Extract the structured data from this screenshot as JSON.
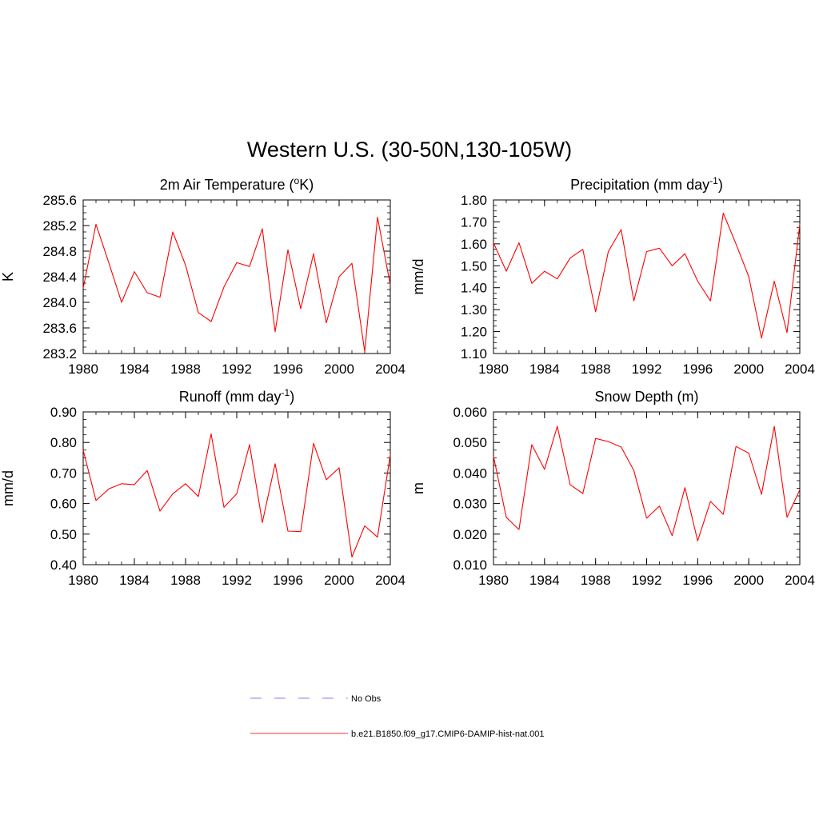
{
  "figure": {
    "title": "Western U.S. (30-50N,130-105W)"
  },
  "legend": {
    "items": [
      {
        "label": "No Obs",
        "style": "dashed",
        "color": "#9999ff"
      },
      {
        "label": "b.e21.B1850.f09_g17.CMIP6-DAMIP-hist-nat.001",
        "style": "solid",
        "color": "#ff3333"
      }
    ]
  },
  "chart_data": [
    {
      "type": "line",
      "title": "2m Air Temperature (°K)",
      "ylabel": "K",
      "xlim": [
        1980,
        2004
      ],
      "xticks": [
        "1980",
        "1984",
        "1988",
        "1992",
        "1996",
        "2000",
        "2004"
      ],
      "ylim": [
        283.2,
        285.6
      ],
      "yticks": [
        "283.2",
        "283.6",
        "284.0",
        "284.4",
        "284.8",
        "285.2",
        "285.6"
      ],
      "series": [
        {
          "color": "#ff0000",
          "x": [
            1980,
            1981,
            1982,
            1983,
            1984,
            1985,
            1986,
            1987,
            1988,
            1989,
            1990,
            1991,
            1992,
            1993,
            1994,
            1995,
            1996,
            1997,
            1998,
            1999,
            2000,
            2001,
            2002,
            2003,
            2004
          ],
          "values": [
            284.22,
            285.22,
            284.62,
            284.0,
            284.48,
            284.15,
            284.08,
            285.1,
            284.58,
            283.84,
            283.7,
            284.24,
            284.62,
            284.56,
            285.15,
            283.54,
            284.82,
            283.9,
            284.76,
            283.68,
            284.4,
            284.61,
            283.23,
            285.33,
            284.27
          ]
        }
      ]
    },
    {
      "type": "line",
      "title": "Precipitation (mm day-1)",
      "ylabel": "mm/d",
      "xlim": [
        1980,
        2004
      ],
      "xticks": [
        "1980",
        "1984",
        "1988",
        "1992",
        "1996",
        "2000",
        "2004"
      ],
      "ylim": [
        1.1,
        1.8
      ],
      "yticks": [
        "1.10",
        "1.20",
        "1.30",
        "1.40",
        "1.50",
        "1.60",
        "1.70",
        "1.80"
      ],
      "series": [
        {
          "color": "#ff0000",
          "x": [
            1980,
            1981,
            1982,
            1983,
            1984,
            1985,
            1986,
            1987,
            1988,
            1989,
            1990,
            1991,
            1992,
            1993,
            1994,
            1995,
            1996,
            1997,
            1998,
            1999,
            2000,
            2001,
            2002,
            2003,
            2004
          ],
          "values": [
            1.605,
            1.475,
            1.605,
            1.42,
            1.475,
            1.44,
            1.535,
            1.575,
            1.29,
            1.565,
            1.665,
            1.34,
            1.565,
            1.58,
            1.5,
            1.555,
            1.43,
            1.34,
            1.74,
            1.6,
            1.45,
            1.17,
            1.43,
            1.195,
            1.69
          ]
        }
      ]
    },
    {
      "type": "line",
      "title": "Runoff (mm day-1)",
      "ylabel": "mm/d",
      "xlim": [
        1980,
        2004
      ],
      "xticks": [
        "1980",
        "1984",
        "1988",
        "1992",
        "1996",
        "2000",
        "2004"
      ],
      "ylim": [
        0.4,
        0.9
      ],
      "yticks": [
        "0.40",
        "0.50",
        "0.60",
        "0.70",
        "0.80",
        "0.90"
      ],
      "series": [
        {
          "color": "#ff0000",
          "x": [
            1980,
            1981,
            1982,
            1983,
            1984,
            1985,
            1986,
            1987,
            1988,
            1989,
            1990,
            1991,
            1992,
            1993,
            1994,
            1995,
            1996,
            1997,
            1998,
            1999,
            2000,
            2001,
            2002,
            2003,
            2004
          ],
          "values": [
            0.775,
            0.61,
            0.648,
            0.665,
            0.662,
            0.708,
            0.575,
            0.632,
            0.665,
            0.623,
            0.828,
            0.588,
            0.632,
            0.793,
            0.538,
            0.73,
            0.51,
            0.508,
            0.797,
            0.678,
            0.717,
            0.425,
            0.527,
            0.49,
            0.76
          ]
        }
      ]
    },
    {
      "type": "line",
      "title": "Snow Depth (m)",
      "ylabel": "m",
      "xlim": [
        1980,
        2004
      ],
      "xticks": [
        "1980",
        "1984",
        "1988",
        "1992",
        "1996",
        "2000",
        "2004"
      ],
      "ylim": [
        0.01,
        0.06
      ],
      "yticks": [
        "0.010",
        "0.020",
        "0.030",
        "0.040",
        "0.050",
        "0.060"
      ],
      "series": [
        {
          "color": "#ff0000",
          "x": [
            1980,
            1981,
            1982,
            1983,
            1984,
            1985,
            1986,
            1987,
            1988,
            1989,
            1990,
            1991,
            1992,
            1993,
            1994,
            1995,
            1996,
            1997,
            1998,
            1999,
            2000,
            2001,
            2002,
            2003,
            2004
          ],
          "values": [
            0.0455,
            0.0255,
            0.0215,
            0.0493,
            0.0412,
            0.0553,
            0.0362,
            0.0333,
            0.0513,
            0.0503,
            0.0485,
            0.0408,
            0.0252,
            0.0292,
            0.0195,
            0.0352,
            0.0178,
            0.0307,
            0.0265,
            0.0487,
            0.0465,
            0.033,
            0.0553,
            0.0255,
            0.0345
          ]
        }
      ]
    }
  ]
}
